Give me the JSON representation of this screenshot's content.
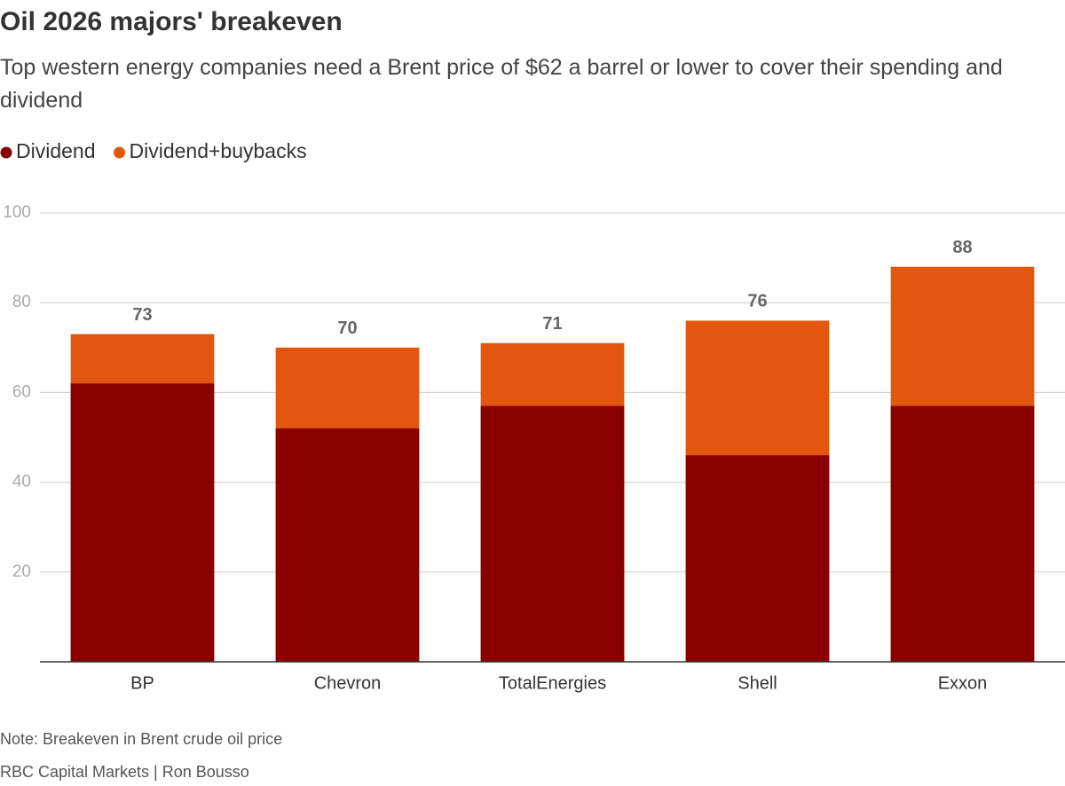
{
  "chart_data": {
    "type": "bar",
    "overlap": true,
    "title": "Oil 2026 majors' breakeven",
    "subtitle": "Top western energy companies need a Brent price of $62 a barrel or lower to cover their spending and dividend",
    "categories": [
      "BP",
      "Chevron",
      "TotalEnergies",
      "Shell",
      "Exxon"
    ],
    "series": [
      {
        "name": "Dividend",
        "color": "#8a0000",
        "values": [
          62,
          52,
          57,
          46,
          57
        ]
      },
      {
        "name": "Dividend+buybacks",
        "color": "#e3560f",
        "values": [
          73,
          70,
          71,
          76,
          88
        ],
        "data_labels": true
      }
    ],
    "ylim": [
      0,
      100
    ],
    "yticks": [
      20,
      40,
      60,
      80,
      100
    ],
    "grid": true,
    "note": "Note: Breakeven in Brent crude oil price",
    "source": "RBC Capital Markets | Ron Bousso"
  }
}
